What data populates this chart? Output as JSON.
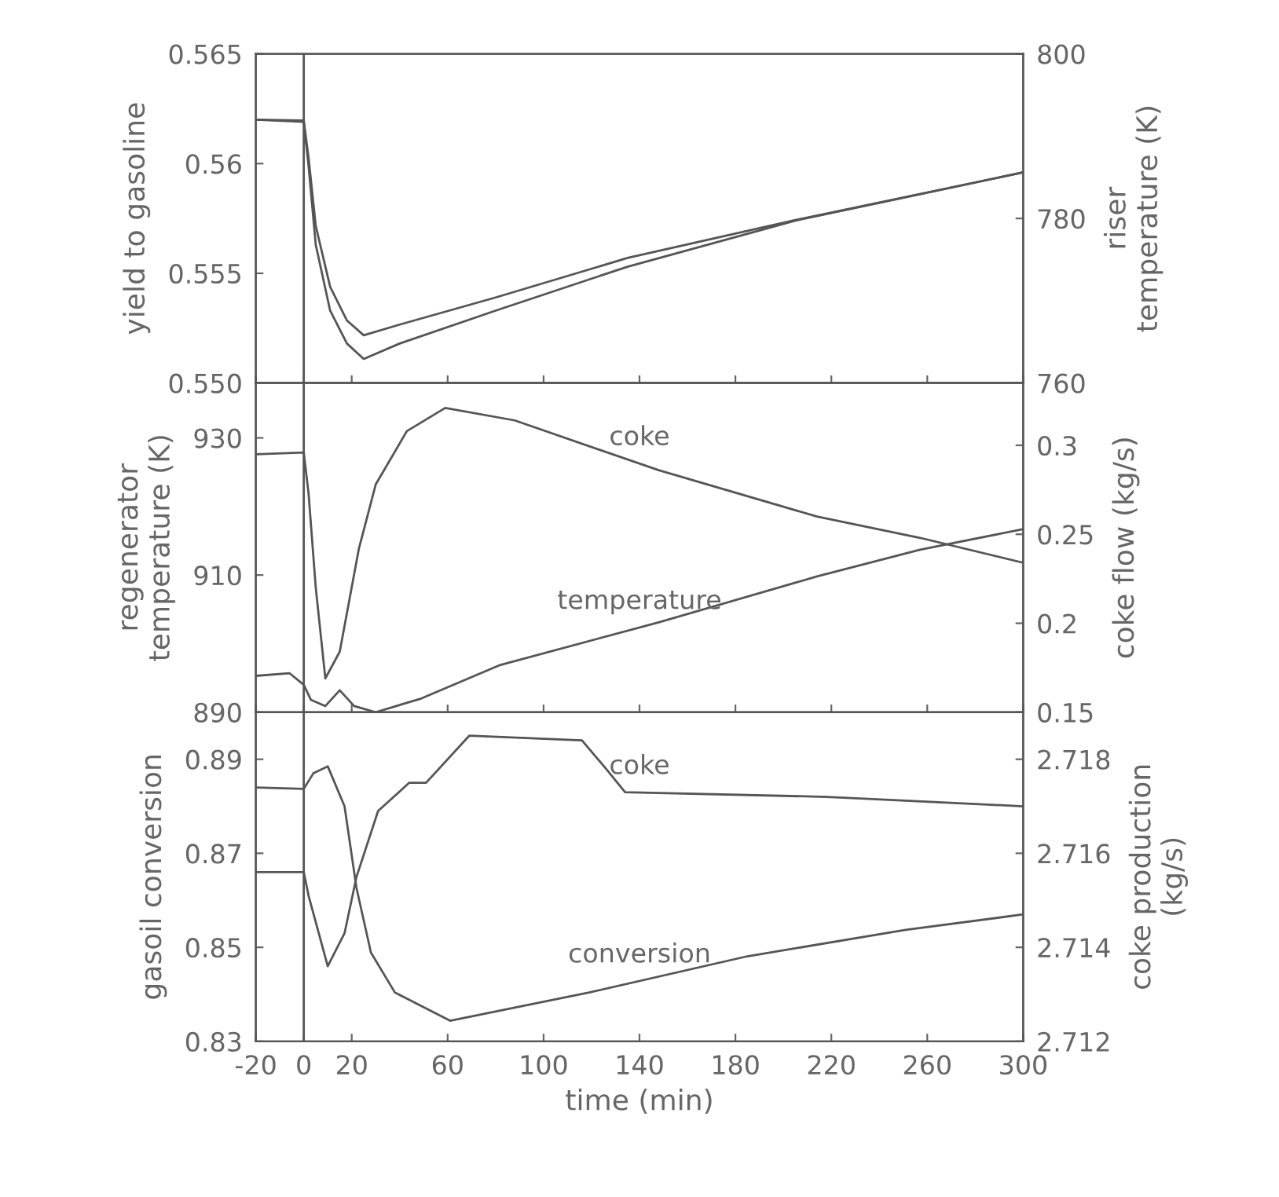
{
  "chart_data": [
    {
      "type": "line",
      "ylabel": "yield to gasoline",
      "y2label": "riser\ntemperature (K)",
      "xlim": [
        -20,
        300
      ],
      "xticks": [
        -20,
        0,
        20,
        60,
        100,
        140,
        180,
        220,
        260,
        300
      ],
      "tick_labels": "y",
      "ylim": [
        0.55,
        0.565
      ],
      "yticks": [
        {
          "value": 0.55,
          "label": "0.550"
        },
        0.555,
        0.56,
        0.565
      ],
      "y2lim": [
        760,
        800
      ],
      "y2ticks": [
        760,
        780,
        800
      ],
      "ref_lines": [
        {
          "axis": "x",
          "value": 0
        }
      ],
      "series": [
        {
          "color": "#555555",
          "x": [
            -20,
            0,
            2,
            5,
            11,
            18,
            25,
            40,
            80,
            135,
            205,
            300
          ],
          "values": [
            0.562,
            0.5619,
            0.5599,
            0.5563,
            0.5533,
            0.5518,
            0.5511,
            0.5518,
            0.5533,
            0.5553,
            0.5574,
            0.5596
          ]
        },
        {
          "color": "#555555",
          "axis": "y2",
          "x": [
            -20,
            0,
            2,
            5,
            11,
            18,
            25,
            40,
            80,
            135,
            205,
            300
          ],
          "values": [
            792.0,
            791.9,
            787.4,
            779.1,
            771.7,
            767.6,
            765.8,
            767.1,
            770.4,
            775.2,
            779.8,
            785.6
          ]
        }
      ]
    },
    {
      "type": "line",
      "ylabel": "regenerator\ntemperature (K)",
      "y2label": "coke flow (kg/s)",
      "xlim": [
        -20,
        300
      ],
      "xticks": [
        -20,
        0,
        20,
        60,
        100,
        140,
        180,
        220,
        260,
        300
      ],
      "tick_labels": "y",
      "ylim": [
        890,
        938
      ],
      "yticks": [
        890,
        910,
        930
      ],
      "y2lim": [
        0.15,
        0.335
      ],
      "y2ticks": [
        0.15,
        0.2,
        0.25,
        0.3
      ],
      "ref_lines": [
        {
          "axis": "x",
          "value": 0
        }
      ],
      "series": [
        {
          "name": "temperature",
          "color": "#555555",
          "x": [
            -20,
            -6,
            0,
            3,
            9,
            15,
            21,
            30,
            49,
            82,
            148,
            214,
            257,
            300
          ],
          "values": [
            895.3,
            895.7,
            894.0,
            891.8,
            890.9,
            893.2,
            890.9,
            890.0,
            892.0,
            896.9,
            903.1,
            909.8,
            913.7,
            916.7
          ]
        },
        {
          "name": "coke",
          "color": "#555555",
          "axis": "y2",
          "x": [
            -20,
            0,
            2,
            5,
            9,
            15,
            23,
            30,
            43,
            59,
            88,
            148,
            214,
            257,
            300
          ],
          "values": [
            0.295,
            0.296,
            0.273,
            0.22,
            0.169,
            0.184,
            0.242,
            0.278,
            0.308,
            0.321,
            0.314,
            0.286,
            0.26,
            0.248,
            0.234
          ]
        }
      ]
    },
    {
      "type": "line",
      "ylabel": "gasoil conversion",
      "y2label": "coke production\n(kg/s)",
      "xlabel": "time (min)",
      "xlim": [
        -20,
        300
      ],
      "xticks": [
        -20,
        0,
        20,
        60,
        100,
        140,
        180,
        220,
        260,
        300
      ],
      "ylim": [
        0.83,
        0.9
      ],
      "yticks": [
        0.83,
        0.85,
        0.87,
        0.89
      ],
      "y2lim": [
        2.712,
        2.719
      ],
      "y2ticks": [
        2.712,
        2.714,
        2.716,
        2.718
      ],
      "ref_lines": [
        {
          "axis": "x",
          "value": 0
        }
      ],
      "series": [
        {
          "name": "conversion",
          "color": "#555555",
          "x": [
            -20,
            0,
            4,
            10,
            17,
            22,
            28,
            38,
            61,
            119,
            185,
            251,
            300
          ],
          "values": [
            0.884,
            0.8837,
            0.887,
            0.8885,
            0.88,
            0.8626,
            0.8489,
            0.8404,
            0.8344,
            0.8404,
            0.8481,
            0.8537,
            0.857
          ]
        },
        {
          "name": "coke",
          "color": "#555555",
          "axis": "y2",
          "x": [
            -20,
            0,
            2,
            10,
            17,
            22,
            31,
            44,
            51,
            69,
            116,
            126,
            134,
            218,
            300
          ],
          "values": [
            2.7156,
            2.7156,
            2.7151,
            2.7136,
            2.7143,
            2.7155,
            2.7169,
            2.7175,
            2.7175,
            2.7185,
            2.7184,
            2.7178,
            2.7173,
            2.7172,
            2.717
          ]
        }
      ]
    }
  ]
}
